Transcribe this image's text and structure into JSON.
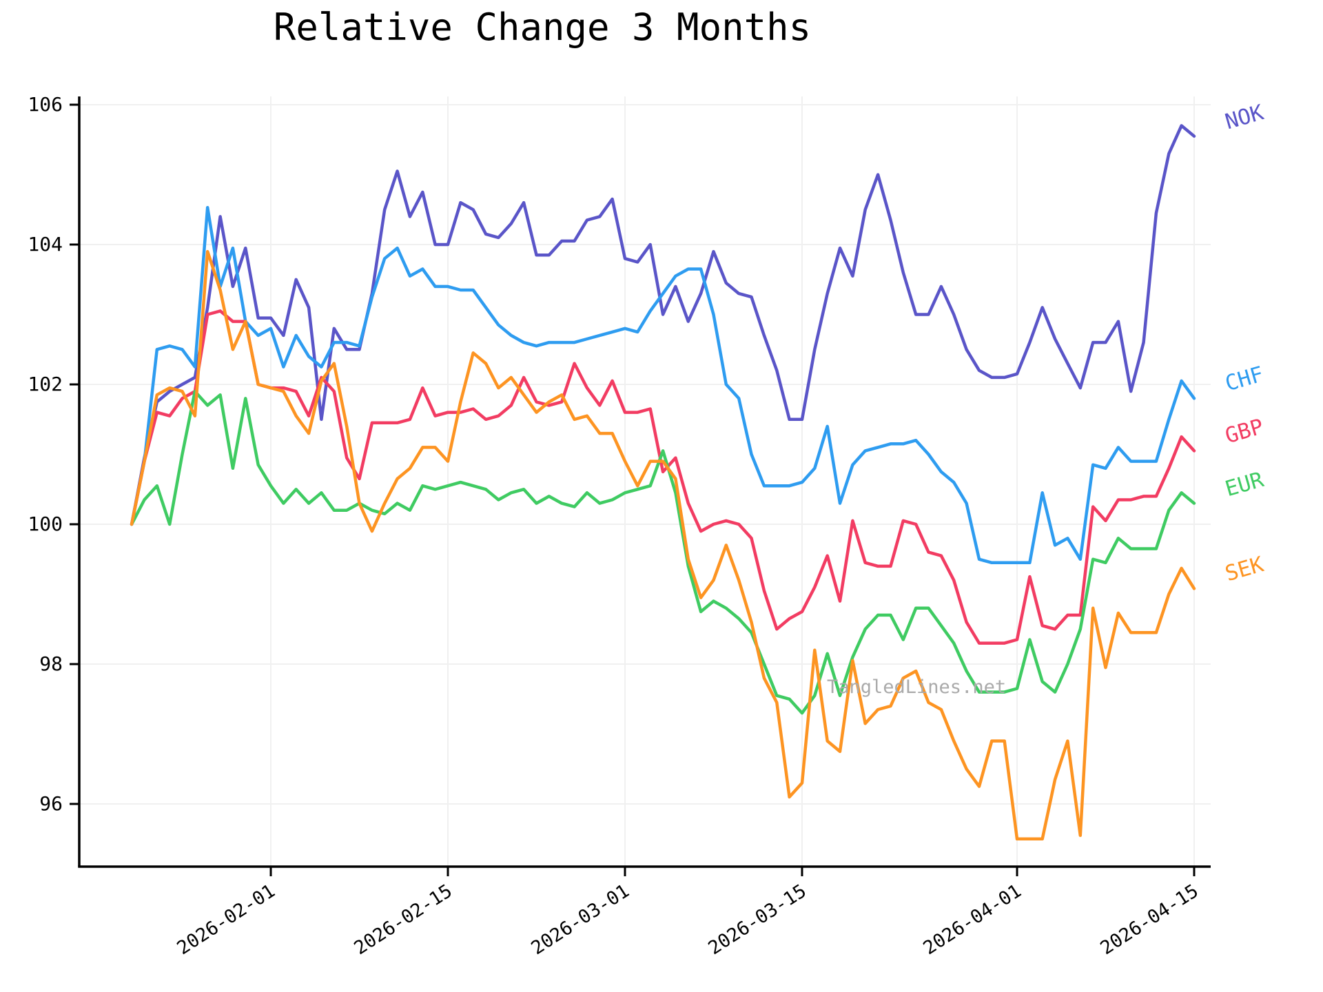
{
  "page": {
    "title": "Relative Change 3 Months",
    "watermark": "TangledLines.net"
  },
  "chart_data": {
    "type": "line",
    "title": "Relative Change 3 Months",
    "xlabel": "",
    "ylabel": "",
    "grid": true,
    "legend_position": "right-margin-colored-labels",
    "ylim": [
      95.1,
      106.15
    ],
    "y_ticks": [
      96,
      98,
      100,
      102,
      104,
      106
    ],
    "x_tick_labels": [
      "2026-02-01",
      "2026-02-15",
      "2026-03-01",
      "2026-03-15",
      "2026-04-01",
      "2026-04-15"
    ],
    "x_tick_indices": [
      11,
      25,
      39,
      53,
      70,
      84
    ],
    "dates": [
      "2026-01-21",
      "2026-01-22",
      "2026-01-23",
      "2026-01-24",
      "2026-01-25",
      "2026-01-26",
      "2026-01-27",
      "2026-01-28",
      "2026-01-29",
      "2026-01-30",
      "2026-01-31",
      "2026-02-01",
      "2026-02-02",
      "2026-02-03",
      "2026-02-04",
      "2026-02-05",
      "2026-02-06",
      "2026-02-07",
      "2026-02-08",
      "2026-02-09",
      "2026-02-10",
      "2026-02-11",
      "2026-02-12",
      "2026-02-13",
      "2026-02-14",
      "2026-02-15",
      "2026-02-16",
      "2026-02-17",
      "2026-02-18",
      "2026-02-19",
      "2026-02-20",
      "2026-02-21",
      "2026-02-22",
      "2026-02-23",
      "2026-02-24",
      "2026-02-25",
      "2026-02-26",
      "2026-02-27",
      "2026-02-28",
      "2026-03-01",
      "2026-03-02",
      "2026-03-03",
      "2026-03-04",
      "2026-03-05",
      "2026-03-06",
      "2026-03-07",
      "2026-03-08",
      "2026-03-09",
      "2026-03-10",
      "2026-03-11",
      "2026-03-12",
      "2026-03-13",
      "2026-03-14",
      "2026-03-15",
      "2026-03-16",
      "2026-03-17",
      "2026-03-18",
      "2026-03-19",
      "2026-03-20",
      "2026-03-21",
      "2026-03-22",
      "2026-03-23",
      "2026-03-24",
      "2026-03-25",
      "2026-03-26",
      "2026-03-27",
      "2026-03-28",
      "2026-03-29",
      "2026-03-30",
      "2026-03-31",
      "2026-04-01",
      "2026-04-02",
      "2026-04-03",
      "2026-04-04",
      "2026-04-05",
      "2026-04-06",
      "2026-04-07",
      "2026-04-08",
      "2026-04-09",
      "2026-04-10",
      "2026-04-11",
      "2026-04-12",
      "2026-04-13",
      "2026-04-14",
      "2026-04-15"
    ],
    "series": [
      {
        "name": "NOK",
        "color": "#5a55c8",
        "values": [
          100.0,
          100.95,
          101.75,
          101.9,
          102.0,
          102.1,
          103.1,
          104.4,
          103.4,
          103.95,
          102.95,
          102.95,
          102.7,
          103.5,
          103.1,
          101.5,
          102.8,
          102.5,
          102.5,
          103.3,
          104.5,
          105.05,
          104.4,
          104.75,
          104.0,
          104.0,
          104.6,
          104.5,
          104.15,
          104.1,
          104.3,
          104.6,
          103.85,
          103.85,
          104.05,
          104.05,
          104.35,
          104.4,
          104.65,
          103.8,
          103.75,
          104.0,
          103.0,
          103.4,
          102.9,
          103.3,
          103.9,
          103.45,
          103.3,
          103.25,
          102.7,
          102.2,
          101.5,
          101.5,
          102.5,
          103.3,
          103.95,
          103.55,
          104.5,
          105.0,
          104.35,
          103.6,
          103.0,
          103.0,
          103.4,
          103.0,
          102.5,
          102.2,
          102.1,
          102.1,
          102.15,
          102.6,
          103.1,
          102.65,
          102.3,
          101.95,
          102.6,
          102.6,
          102.9,
          101.9,
          102.6,
          104.45,
          105.3,
          105.7,
          105.55
        ]
      },
      {
        "name": "CHF",
        "color": "#2e9cf0",
        "values": [
          100.0,
          100.9,
          102.5,
          102.55,
          102.5,
          102.25,
          104.53,
          103.4,
          103.95,
          102.9,
          102.7,
          102.8,
          102.25,
          102.7,
          102.4,
          102.25,
          102.6,
          102.6,
          102.55,
          103.25,
          103.8,
          103.95,
          103.55,
          103.65,
          103.4,
          103.4,
          103.35,
          103.35,
          103.1,
          102.85,
          102.7,
          102.6,
          102.55,
          102.6,
          102.6,
          102.6,
          102.65,
          102.7,
          102.75,
          102.8,
          102.75,
          103.05,
          103.3,
          103.55,
          103.65,
          103.65,
          103.0,
          102.0,
          101.8,
          101.0,
          100.55,
          100.55,
          100.55,
          100.6,
          100.8,
          101.4,
          100.3,
          100.85,
          101.05,
          101.1,
          101.15,
          101.15,
          101.2,
          101.0,
          100.75,
          100.6,
          100.3,
          99.5,
          99.45,
          99.45,
          99.45,
          99.45,
          100.45,
          99.7,
          99.8,
          99.5,
          100.85,
          100.8,
          101.1,
          100.9,
          100.9,
          100.9,
          101.5,
          102.05,
          101.8
        ]
      },
      {
        "name": "GBP",
        "color": "#f23c62",
        "values": [
          100.0,
          100.9,
          101.6,
          101.55,
          101.8,
          101.9,
          103.0,
          103.05,
          102.9,
          102.9,
          102.0,
          101.95,
          101.95,
          101.9,
          101.55,
          102.1,
          101.9,
          100.95,
          100.65,
          101.45,
          101.45,
          101.45,
          101.5,
          101.95,
          101.55,
          101.6,
          101.6,
          101.65,
          101.5,
          101.55,
          101.7,
          102.1,
          101.75,
          101.7,
          101.75,
          102.3,
          101.95,
          101.7,
          102.05,
          101.6,
          101.6,
          101.65,
          100.75,
          100.95,
          100.3,
          99.9,
          100.0,
          100.05,
          100.0,
          99.8,
          99.05,
          98.5,
          98.65,
          98.75,
          99.1,
          99.55,
          98.9,
          100.05,
          99.45,
          99.4,
          99.4,
          100.05,
          100.0,
          99.6,
          99.55,
          99.2,
          98.6,
          98.3,
          98.3,
          98.3,
          98.35,
          99.25,
          98.55,
          98.5,
          98.7,
          98.7,
          100.25,
          100.05,
          100.35,
          100.35,
          100.4,
          100.4,
          100.8,
          101.25,
          101.05
        ]
      },
      {
        "name": "EUR",
        "color": "#3fcb62",
        "values": [
          100.0,
          100.35,
          100.55,
          100.0,
          101.0,
          101.9,
          101.7,
          101.85,
          100.8,
          101.8,
          100.85,
          100.55,
          100.3,
          100.5,
          100.3,
          100.45,
          100.2,
          100.2,
          100.3,
          100.2,
          100.15,
          100.3,
          100.2,
          100.55,
          100.5,
          100.55,
          100.6,
          100.55,
          100.5,
          100.35,
          100.45,
          100.5,
          100.3,
          100.4,
          100.3,
          100.25,
          100.45,
          100.3,
          100.35,
          100.45,
          100.5,
          100.55,
          101.05,
          100.45,
          99.4,
          98.75,
          98.9,
          98.8,
          98.65,
          98.45,
          98.0,
          97.55,
          97.5,
          97.3,
          97.55,
          98.15,
          97.55,
          98.1,
          98.5,
          98.7,
          98.7,
          98.35,
          98.8,
          98.8,
          98.55,
          98.3,
          97.9,
          97.6,
          97.6,
          97.6,
          97.65,
          98.35,
          97.75,
          97.6,
          98.0,
          98.5,
          99.5,
          99.45,
          99.8,
          99.65,
          99.65,
          99.65,
          100.2,
          100.45,
          100.3
        ]
      },
      {
        "name": "SEK",
        "color": "#fd9422",
        "values": [
          100.0,
          100.9,
          101.85,
          101.95,
          101.9,
          101.55,
          103.9,
          103.35,
          102.5,
          102.9,
          102.0,
          101.95,
          101.9,
          101.55,
          101.3,
          102.05,
          102.3,
          101.4,
          100.3,
          99.9,
          100.3,
          100.65,
          100.8,
          101.1,
          101.1,
          100.9,
          101.75,
          102.45,
          102.3,
          101.95,
          102.1,
          101.85,
          101.6,
          101.75,
          101.85,
          101.5,
          101.55,
          101.3,
          101.3,
          100.9,
          100.55,
          100.9,
          100.9,
          100.65,
          99.5,
          98.95,
          99.2,
          99.7,
          99.2,
          98.6,
          97.8,
          97.45,
          96.1,
          96.3,
          98.2,
          96.9,
          96.75,
          98.05,
          97.15,
          97.35,
          97.4,
          97.8,
          97.9,
          97.45,
          97.35,
          96.9,
          96.5,
          96.25,
          96.9,
          96.9,
          95.5,
          95.5,
          95.5,
          96.35,
          96.9,
          95.55,
          98.8,
          97.95,
          98.73,
          98.45,
          98.45,
          98.45,
          99.0,
          99.37,
          99.08
        ]
      }
    ]
  }
}
